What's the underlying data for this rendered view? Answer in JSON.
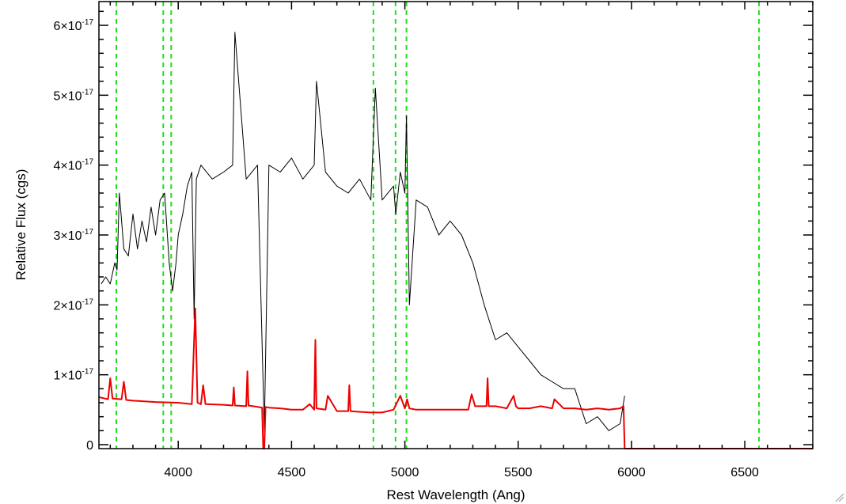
{
  "chart_data": {
    "type": "line",
    "title": "",
    "xlabel": "Rest Wavelength (Ang)",
    "ylabel": "Relative Flux (cgs)",
    "xlim": [
      3650,
      6800
    ],
    "ylim": [
      0,
      6.3e-17
    ],
    "x_ticks": [
      {
        "value": 4000,
        "label": "4000"
      },
      {
        "value": 4500,
        "label": "4500"
      },
      {
        "value": 5000,
        "label": "5000"
      },
      {
        "value": 5500,
        "label": "5500"
      },
      {
        "value": 6000,
        "label": "6000"
      },
      {
        "value": 6500,
        "label": "6500"
      }
    ],
    "y_ticks": [
      {
        "value": 0,
        "mantissa": "0",
        "exponent": ""
      },
      {
        "value": 1e-17,
        "mantissa": "1×10",
        "exponent": "-17"
      },
      {
        "value": 2e-17,
        "mantissa": "2×10",
        "exponent": "-17"
      },
      {
        "value": 3e-17,
        "mantissa": "3×10",
        "exponent": "-17"
      },
      {
        "value": 4e-17,
        "mantissa": "4×10",
        "exponent": "-17"
      },
      {
        "value": 5e-17,
        "mantissa": "5×10",
        "exponent": "-17"
      },
      {
        "value": 6e-17,
        "mantissa": "6×10",
        "exponent": "-17"
      }
    ],
    "grid": false,
    "legend": "none",
    "series": [
      {
        "color": "#000000",
        "x": [
          3660,
          3680,
          3700,
          3720,
          3730,
          3740,
          3760,
          3780,
          3800,
          3820,
          3840,
          3860,
          3880,
          3900,
          3920,
          3940,
          3960,
          3975,
          3990,
          4000,
          4020,
          4040,
          4060,
          4070,
          4080,
          4100,
          4150,
          4200,
          4240,
          4250,
          4300,
          4350,
          4380,
          4400,
          4450,
          4500,
          4550,
          4600,
          4610,
          4650,
          4700,
          4750,
          4800,
          4850,
          4870,
          4900,
          4950,
          4960,
          4980,
          5000,
          5007,
          5020,
          5050,
          5100,
          5150,
          5200,
          5250,
          5300,
          5350,
          5400,
          5450,
          5500,
          5550,
          5600,
          5650,
          5700,
          5750,
          5800,
          5850,
          5900,
          5950,
          5970
        ],
        "y": [
          2.3e-17,
          2.4e-17,
          2.3e-17,
          2.6e-17,
          2.5e-17,
          3.6e-17,
          2.8e-17,
          2.7e-17,
          3.3e-17,
          2.8e-17,
          3.2e-17,
          2.9e-17,
          3.4e-17,
          3e-17,
          3.5e-17,
          3.6e-17,
          2.6e-17,
          2.2e-17,
          2.6e-17,
          3e-17,
          3.3e-17,
          3.7e-17,
          3.9e-17,
          1.8e-17,
          3.8e-17,
          4e-17,
          3.8e-17,
          3.9e-17,
          4e-17,
          5.9e-17,
          3.8e-17,
          4e-17,
          2e-18,
          4e-17,
          3.9e-17,
          4.1e-17,
          3.8e-17,
          4e-17,
          5.2e-17,
          3.9e-17,
          3.7e-17,
          3.6e-17,
          3.8e-17,
          3.5e-17,
          5.1e-17,
          3.5e-17,
          3.7e-17,
          3.3e-17,
          3.9e-17,
          3.6e-17,
          4.7e-17,
          2e-17,
          3.5e-17,
          3.4e-17,
          3e-17,
          3.2e-17,
          3e-17,
          2.6e-17,
          2e-17,
          1.5e-17,
          1.6e-17,
          1.4e-17,
          1.2e-17,
          1e-17,
          9e-18,
          8e-18,
          8e-18,
          3e-18,
          4e-18,
          2e-18,
          3e-18,
          7e-18
        ]
      },
      {
        "color": "#ee0000",
        "x": [
          3650,
          3690,
          3700,
          3710,
          3750,
          3760,
          3770,
          3800,
          3900,
          4000,
          4060,
          4075,
          4085,
          4100,
          4110,
          4120,
          4200,
          4240,
          4245,
          4250,
          4300,
          4305,
          4310,
          4330,
          4350,
          4370,
          4375,
          4380,
          4385,
          4400,
          4450,
          4500,
          4550,
          4580,
          4600,
          4605,
          4610,
          4650,
          4660,
          4700,
          4750,
          4755,
          4760,
          4800,
          4850,
          4900,
          4950,
          4980,
          5000,
          5010,
          5020,
          5050,
          5100,
          5200,
          5280,
          5295,
          5310,
          5360,
          5365,
          5370,
          5400,
          5450,
          5480,
          5490,
          5500,
          5550,
          5600,
          5650,
          5660,
          5700,
          5750,
          5800,
          5850,
          5900,
          5950,
          5965,
          5970,
          5980,
          6000,
          6500,
          6800
        ],
        "y": [
          6.8e-18,
          6.5e-18,
          9.5e-18,
          6.6e-18,
          6.5e-18,
          9e-18,
          6.4e-18,
          6.3e-18,
          6.1e-18,
          6e-18,
          5.8e-18,
          1.95e-17,
          6e-18,
          5.8e-18,
          8.5e-18,
          5.8e-18,
          5.7e-18,
          5.6e-18,
          8.2e-18,
          5.6e-18,
          5.5e-18,
          1.05e-17,
          5.6e-18,
          5.5e-18,
          5.4e-18,
          5.3e-18,
          -6e-18,
          -6e-18,
          5.4e-18,
          5.3e-18,
          5.2e-18,
          5e-18,
          5e-18,
          5.8e-18,
          5e-18,
          1.5e-17,
          5.2e-18,
          5e-18,
          7e-18,
          4.8e-18,
          4.8e-18,
          8.5e-18,
          4.8e-18,
          4.7e-18,
          4.6e-18,
          4.6e-18,
          5e-18,
          7e-18,
          5.2e-18,
          6.5e-18,
          5.2e-18,
          5e-18,
          5e-18,
          5e-18,
          5e-18,
          7.2e-18,
          5.5e-18,
          5.5e-18,
          9.5e-18,
          5.5e-18,
          5.5e-18,
          5.2e-18,
          7e-18,
          5.5e-18,
          5.2e-18,
          5.2e-18,
          5.5e-18,
          5.2e-18,
          6.5e-18,
          5.2e-18,
          5.2e-18,
          5e-18,
          5.2e-18,
          5e-18,
          5.2e-18,
          5.5e-18,
          -2e-18,
          -2e-18,
          -2e-18,
          -2e-18,
          -2e-18
        ]
      }
    ],
    "reference_lines": [
      3727,
      3934,
      3969,
      4861,
      4959,
      5007,
      6563
    ],
    "reference_line_color": "#22dd22"
  }
}
